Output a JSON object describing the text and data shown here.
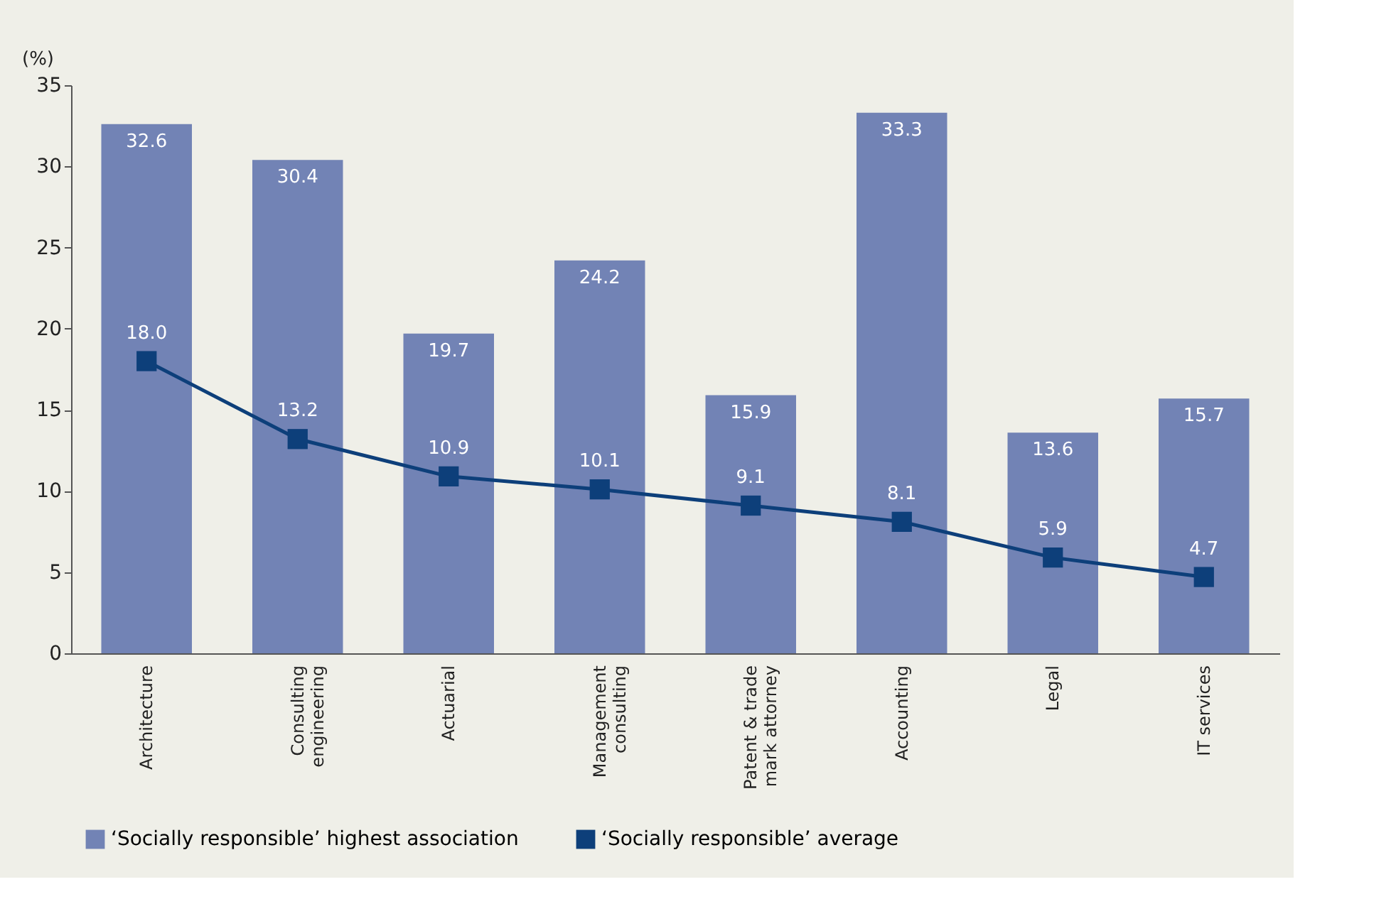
{
  "chart_data": {
    "type": "bar",
    "ylabel": "(%)",
    "categories": [
      "Architecture",
      "Consulting engineering",
      "Actuarial",
      "Management consulting",
      "Patent & trade mark attorney",
      "Accounting",
      "Legal",
      "IT services"
    ],
    "series": [
      {
        "name": "‘Socially responsible’ highest association",
        "color": "#7283b5",
        "values": [
          32.6,
          30.4,
          19.7,
          24.2,
          15.9,
          33.3,
          13.6,
          15.7
        ],
        "value_labels": [
          "32.6",
          "30.4",
          "19.7",
          "24.2",
          "15.9",
          "33.3",
          "13.6",
          "15.7"
        ]
      },
      {
        "name": "‘Socially responsible’ average",
        "type": "line",
        "color": "#0d3f7a",
        "marker": "square",
        "line_style": "solid",
        "values": [
          18.0,
          13.2,
          10.9,
          10.1,
          9.1,
          8.1,
          5.9,
          4.7
        ],
        "value_labels": [
          "18.0",
          "13.2",
          "10.9",
          "10.1",
          "9.1",
          "8.1",
          "5.9",
          "4.7"
        ]
      }
    ],
    "ylim": [
      0,
      35
    ],
    "yticks": [
      0,
      5,
      10,
      15,
      20,
      25,
      30,
      35
    ],
    "grid": false,
    "legend": "bottom"
  }
}
